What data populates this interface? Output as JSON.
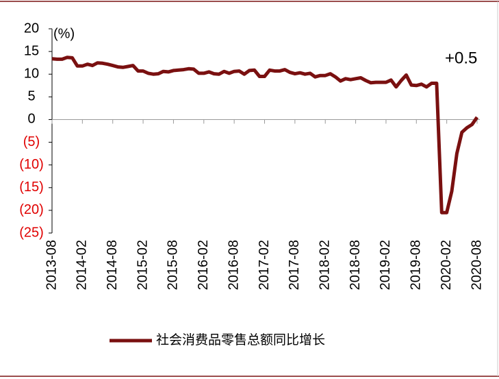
{
  "chart_data": {
    "type": "line",
    "y_label": "(%)",
    "annotation": "+0.5",
    "categories": [
      "2013-08",
      null,
      null,
      null,
      null,
      null,
      "2014-02",
      null,
      null,
      null,
      null,
      null,
      "2014-08",
      null,
      null,
      null,
      null,
      null,
      "2015-02",
      null,
      null,
      null,
      null,
      null,
      "2015-08",
      null,
      null,
      null,
      null,
      null,
      "2016-02",
      null,
      null,
      null,
      null,
      null,
      "2016-08",
      null,
      null,
      null,
      null,
      null,
      "2017-02",
      null,
      null,
      null,
      null,
      null,
      "2017-08",
      null,
      null,
      null,
      null,
      null,
      "2018-02",
      null,
      null,
      null,
      null,
      null,
      "2018-08",
      null,
      null,
      null,
      null,
      null,
      "2019-02",
      null,
      null,
      null,
      null,
      null,
      "2019-08",
      null,
      null,
      null,
      null,
      null,
      "2020-02",
      null,
      null,
      null,
      null,
      null,
      "2020-08"
    ],
    "series": [
      {
        "name": "社会消费品零售总额同比增长",
        "color": "#7a1010",
        "values": [
          13.4,
          13.3,
          13.3,
          13.7,
          13.6,
          11.8,
          11.8,
          12.2,
          11.9,
          12.5,
          12.4,
          12.2,
          11.9,
          11.6,
          11.5,
          11.7,
          11.9,
          10.7,
          10.7,
          10.2,
          10.0,
          10.1,
          10.6,
          10.5,
          10.8,
          10.9,
          11.0,
          11.2,
          11.1,
          10.2,
          10.2,
          10.5,
          10.1,
          10.0,
          10.6,
          10.2,
          10.6,
          10.7,
          10.0,
          10.8,
          10.9,
          9.5,
          9.5,
          10.9,
          10.7,
          10.7,
          11.0,
          10.4,
          10.1,
          10.3,
          10.0,
          10.2,
          9.4,
          9.7,
          9.7,
          10.1,
          9.4,
          8.5,
          9.0,
          8.8,
          9.0,
          9.2,
          8.6,
          8.1,
          8.2,
          8.2,
          8.2,
          8.7,
          7.2,
          8.6,
          9.8,
          7.6,
          7.5,
          7.8,
          7.2,
          8.0,
          8.0,
          -20.5,
          -20.5,
          -15.8,
          -7.5,
          -2.8,
          -1.8,
          -1.1,
          0.5
        ]
      }
    ],
    "ylim": [
      -25,
      20
    ],
    "yticks": [
      20,
      15,
      10,
      5,
      0,
      {
        "value": -5,
        "label": "(5)"
      },
      {
        "value": -10,
        "label": "(10)"
      },
      {
        "value": -15,
        "label": "(15)"
      },
      {
        "value": -20,
        "label": "(20)"
      },
      {
        "value": -25,
        "label": "(25)"
      }
    ],
    "negative_tick_color": "#e00000",
    "legend": "bottom"
  }
}
